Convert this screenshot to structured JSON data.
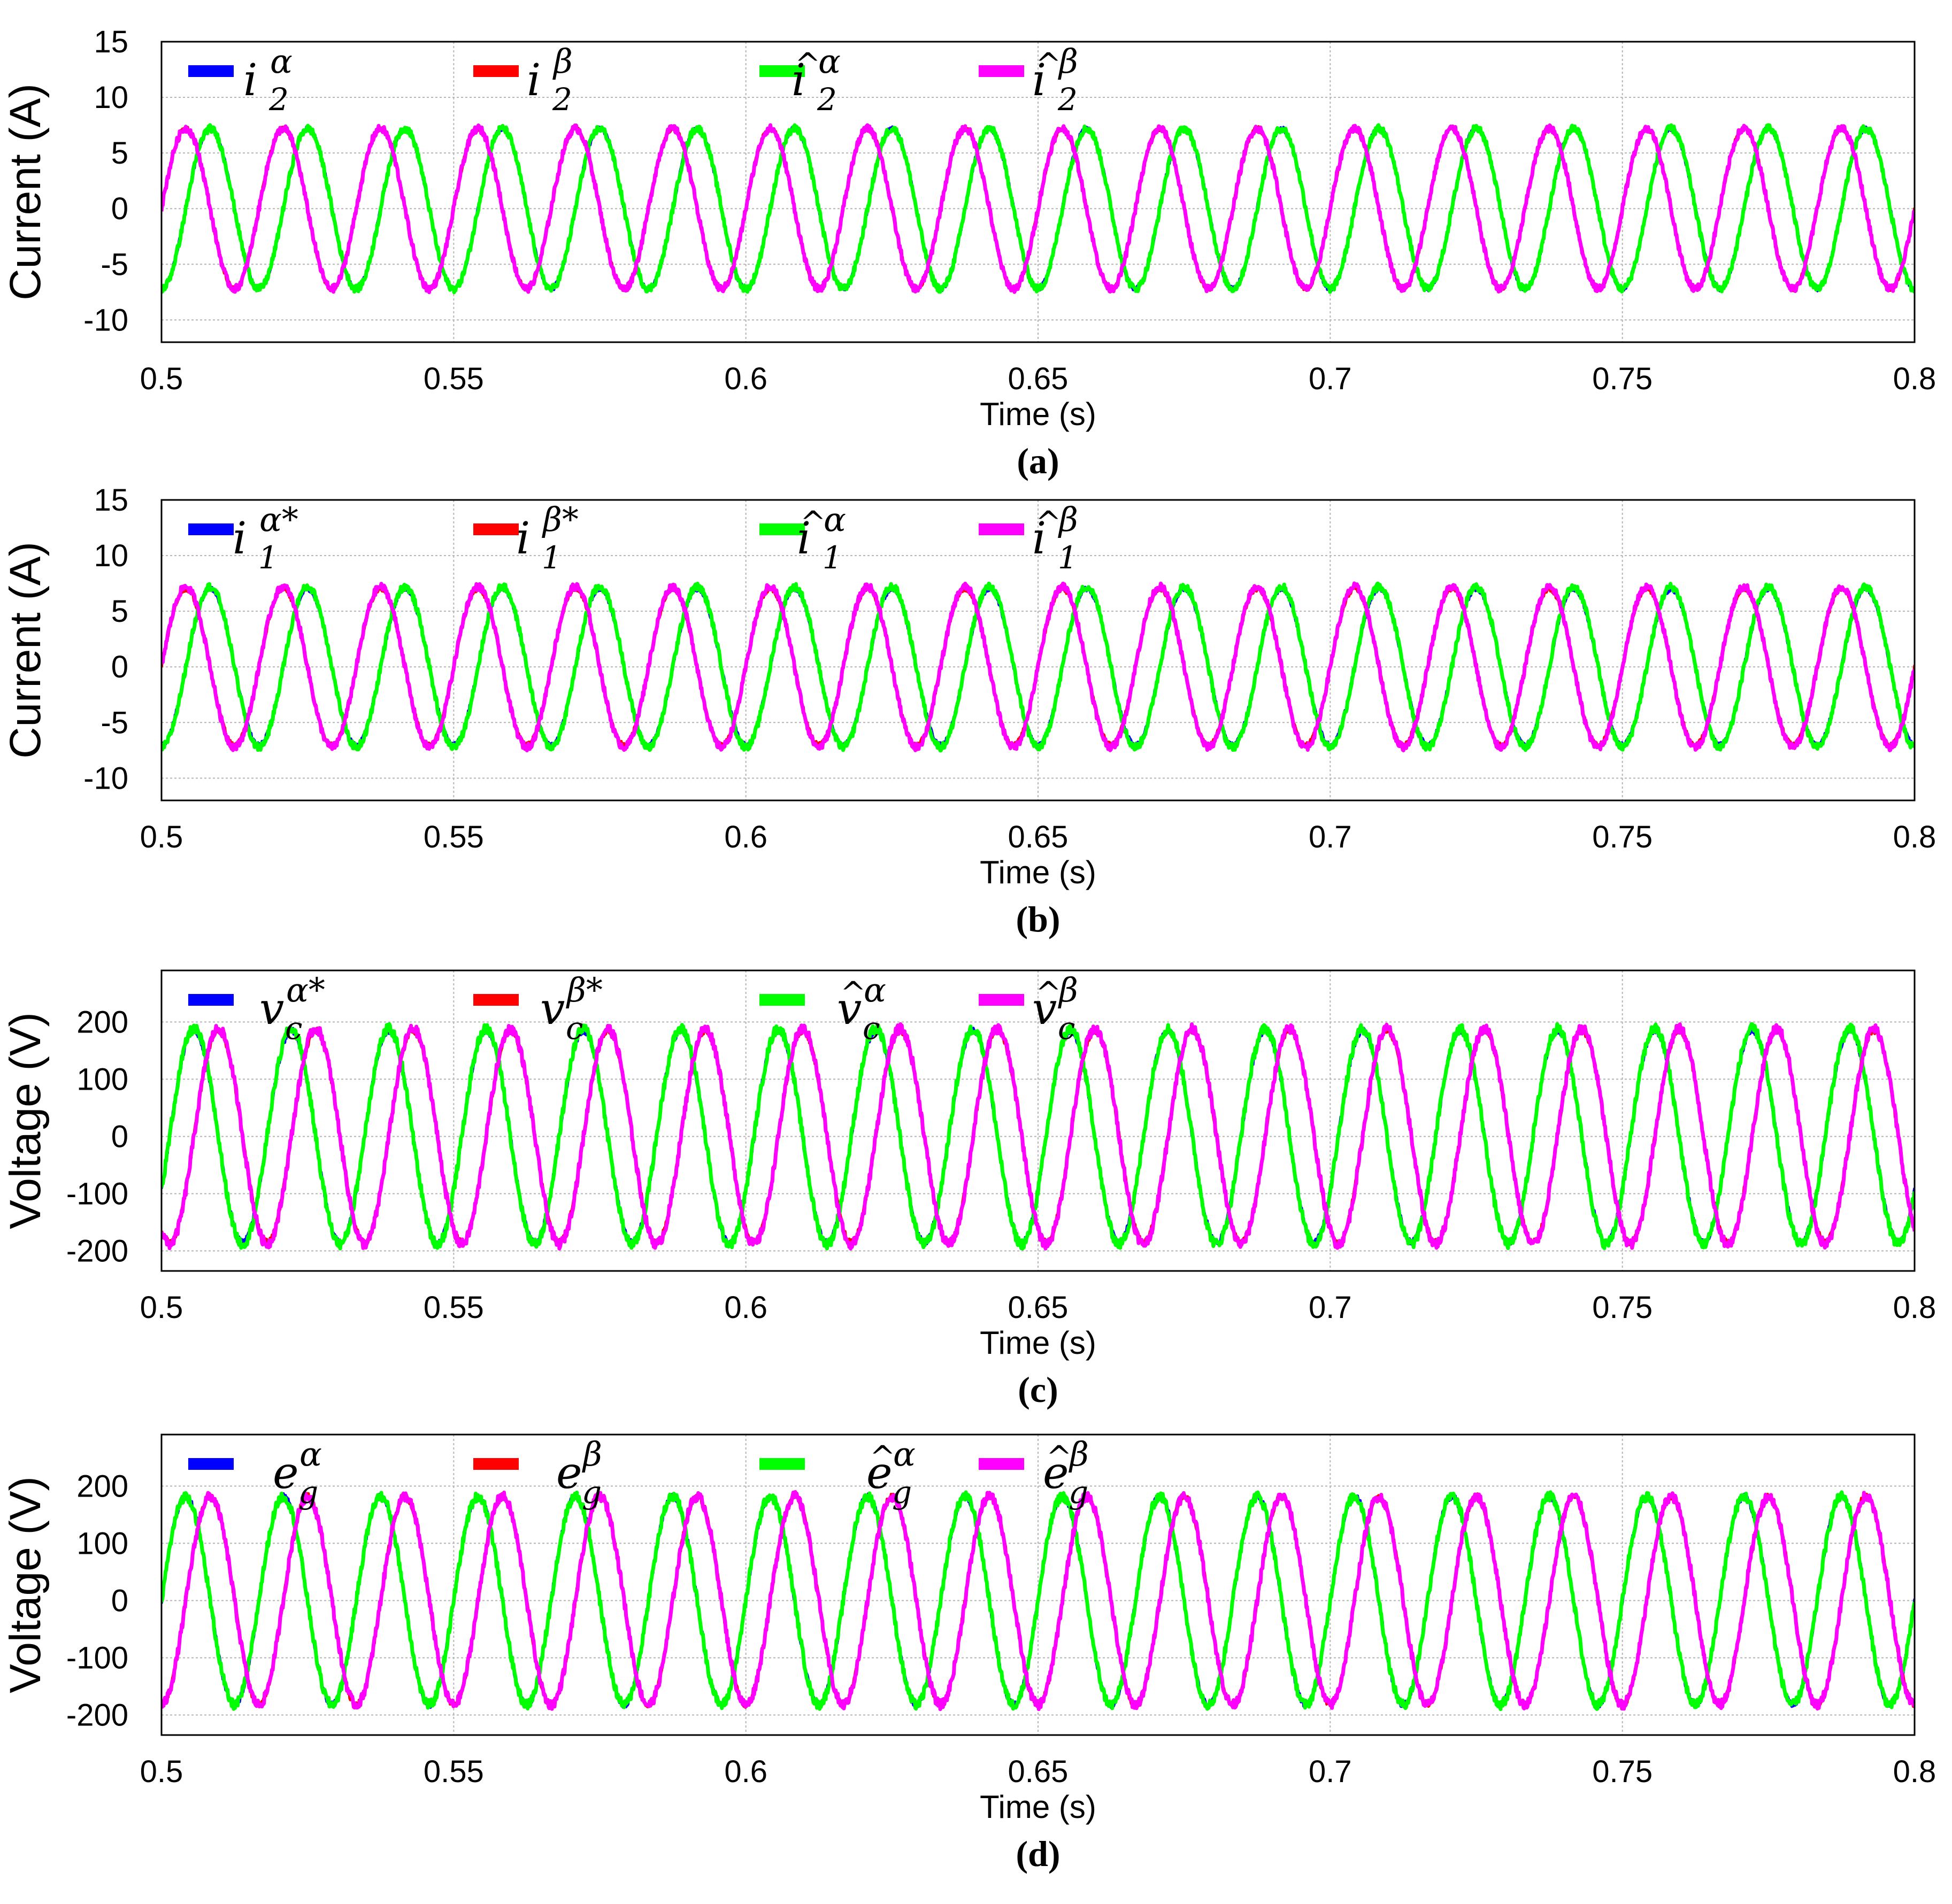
{
  "colors": {
    "series1": "#0000ff",
    "series2": "#ff0000",
    "series3": "#00ff00",
    "series4": "#ff00ff",
    "grid": "#b4b4b4",
    "frame": "#000000"
  },
  "chart_data": [
    {
      "panel": "a",
      "caption": "(a)",
      "type": "line",
      "xlabel": "Time (s)",
      "ylabel": "Current (A)",
      "xlim": [
        0.5,
        0.8
      ],
      "ylim": [
        -12,
        15
      ],
      "xticks": [
        "0.5",
        "0.55",
        "0.6",
        "0.65",
        "0.7",
        "0.75",
        "0.8"
      ],
      "yticks": [
        "15",
        "10",
        "5",
        "0",
        "-5",
        "-10"
      ],
      "grid": true,
      "legend_position": "top",
      "frequency_hz": 60,
      "series": [
        {
          "name": "i₂^α",
          "base": "i",
          "sub": "2",
          "sup": "α",
          "hat": false,
          "color": "#0000ff",
          "amplitude": 7.2,
          "phase_deg": -90,
          "visible_on_top": false
        },
        {
          "name": "i₂^β",
          "base": "i",
          "sub": "2",
          "sup": "β",
          "hat": false,
          "color": "#ff0000",
          "amplitude": 7.2,
          "phase_deg": 0,
          "visible_on_top": false
        },
        {
          "name": "î₂^α",
          "base": "i",
          "sub": "2",
          "sup": "α",
          "hat": true,
          "color": "#00ff00",
          "amplitude": 7.2,
          "phase_deg": -90,
          "visible_on_top": true
        },
        {
          "name": "î₂^β",
          "base": "i",
          "sub": "2",
          "sup": "β",
          "hat": true,
          "color": "#ff00ff",
          "amplitude": 7.2,
          "phase_deg": 0,
          "visible_on_top": true
        }
      ]
    },
    {
      "panel": "b",
      "caption": "(b)",
      "type": "line",
      "xlabel": "Time (s)",
      "ylabel": "Current (A)",
      "xlim": [
        0.5,
        0.8
      ],
      "ylim": [
        -12,
        15
      ],
      "xticks": [
        "0.5",
        "0.55",
        "0.6",
        "0.65",
        "0.7",
        "0.75",
        "0.8"
      ],
      "yticks": [
        "15",
        "10",
        "5",
        "0",
        "-5",
        "-10"
      ],
      "grid": true,
      "legend_position": "top",
      "frequency_hz": 60,
      "series": [
        {
          "name": "i₁^α*",
          "base": "i",
          "sub": "1",
          "sup": "α*",
          "hat": false,
          "color": "#0000ff",
          "amplitude": 7.0,
          "phase_deg": -90,
          "visible_on_top": false
        },
        {
          "name": "i₁^β*",
          "base": "i",
          "sub": "1",
          "sup": "β*",
          "hat": false,
          "color": "#ff0000",
          "amplitude": 7.0,
          "phase_deg": 0,
          "visible_on_top": false
        },
        {
          "name": "î₁^α",
          "base": "i",
          "sub": "1",
          "sup": "α",
          "hat": true,
          "color": "#00ff00",
          "amplitude": 7.2,
          "phase_deg": -90,
          "visible_on_top": true
        },
        {
          "name": "î₁^β",
          "base": "i",
          "sub": "1",
          "sup": "β",
          "hat": true,
          "color": "#ff00ff",
          "amplitude": 7.2,
          "phase_deg": 0,
          "visible_on_top": true
        }
      ]
    },
    {
      "panel": "c",
      "caption": "(c)",
      "type": "line",
      "xlabel": "Time (s)",
      "ylabel": "Voltage (V)",
      "xlim": [
        0.5,
        0.8
      ],
      "ylim": [
        -235,
        290
      ],
      "xticks": [
        "0.5",
        "0.55",
        "0.6",
        "0.65",
        "0.7",
        "0.75",
        "0.8"
      ],
      "yticks": [
        "200",
        "100",
        "0",
        "-100",
        "-200"
      ],
      "grid": true,
      "legend_position": "top",
      "frequency_hz": 60,
      "series": [
        {
          "name": "v_c^α*",
          "base": "v",
          "sub": "c",
          "sup": "α*",
          "hat": false,
          "color": "#0000ff",
          "amplitude": 185,
          "phase_deg": -30,
          "visible_on_top": false
        },
        {
          "name": "v_c^β*",
          "base": "v",
          "sub": "c",
          "sup": "β*",
          "hat": false,
          "color": "#ff0000",
          "amplitude": 185,
          "phase_deg": -120,
          "visible_on_top": false
        },
        {
          "name": "v̂_c^α",
          "base": "v",
          "sub": "c",
          "sup": "α",
          "hat": true,
          "color": "#00ff00",
          "amplitude": 188,
          "phase_deg": -30,
          "visible_on_top": true
        },
        {
          "name": "v̂_c^β",
          "base": "v",
          "sub": "c",
          "sup": "β",
          "hat": true,
          "color": "#ff00ff",
          "amplitude": 188,
          "phase_deg": -120,
          "visible_on_top": true
        }
      ]
    },
    {
      "panel": "d",
      "caption": "(d)",
      "type": "line",
      "xlabel": "Time (s)",
      "ylabel": "Voltage (V)",
      "xlim": [
        0.5,
        0.8
      ],
      "ylim": [
        -235,
        290
      ],
      "xticks": [
        "0.5",
        "0.55",
        "0.6",
        "0.65",
        "0.7",
        "0.75",
        "0.8"
      ],
      "yticks": [
        "200",
        "100",
        "0",
        "-100",
        "-200"
      ],
      "grid": true,
      "legend_position": "top",
      "frequency_hz": 60,
      "series": [
        {
          "name": "e_g^α",
          "base": "e",
          "sub": "g",
          "sup": "α",
          "hat": false,
          "color": "#0000ff",
          "amplitude": 182,
          "phase_deg": 0,
          "visible_on_top": false
        },
        {
          "name": "e_g^β",
          "base": "e",
          "sub": "g",
          "sup": "β",
          "hat": false,
          "color": "#ff0000",
          "amplitude": 182,
          "phase_deg": -90,
          "visible_on_top": false
        },
        {
          "name": "ê_g^α",
          "base": "e",
          "sub": "g",
          "sup": "α",
          "hat": true,
          "color": "#00ff00",
          "amplitude": 182,
          "phase_deg": 0,
          "visible_on_top": true
        },
        {
          "name": "ê_g^β",
          "base": "e",
          "sub": "g",
          "sup": "β",
          "hat": true,
          "color": "#ff00ff",
          "amplitude": 182,
          "phase_deg": -90,
          "visible_on_top": true
        }
      ]
    }
  ]
}
